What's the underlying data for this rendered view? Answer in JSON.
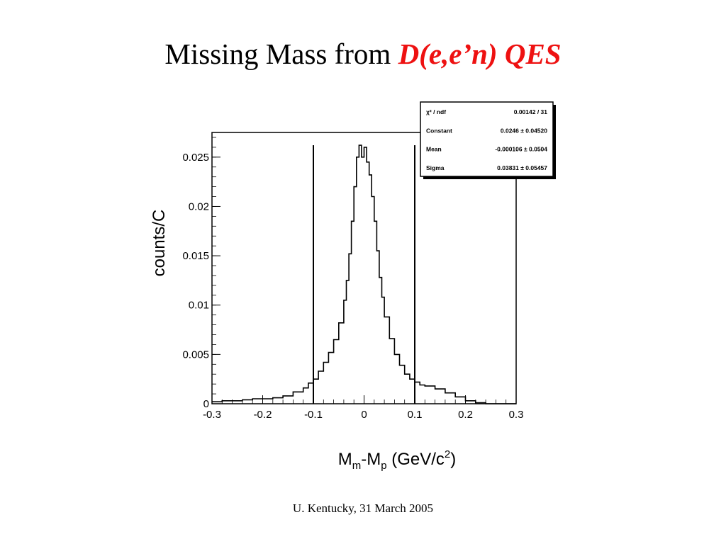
{
  "slide": {
    "title_plain": "Missing Mass from ",
    "title_accent": "D(e,e’n) QES",
    "footer": "U. Kentucky, 31 March 2005"
  },
  "colors": {
    "accent": "#ee1111",
    "histogram": "#000000"
  },
  "chart_data": {
    "type": "histogram",
    "xlabel_main": "M",
    "xlabel_sub1": "m",
    "xlabel_mid": "-M",
    "xlabel_sub2": "p",
    "xlabel_units": " (GeV/c",
    "xlabel_sup": "2",
    "xlabel_close": ")",
    "ylabel": "counts/C",
    "xlim": [
      -0.3,
      0.3
    ],
    "ylim": [
      0,
      0.0275
    ],
    "x_ticks": [
      "-0.3",
      "-0.2",
      "-0.1",
      "0",
      "0.1",
      "0.2",
      "0.3"
    ],
    "y_ticks": [
      "0",
      "0.005",
      "0.01",
      "0.015",
      "0.02",
      "0.025"
    ],
    "cut_lines": [
      -0.1,
      0.1
    ],
    "bins_x": [
      -0.3,
      -0.28,
      -0.26,
      -0.24,
      -0.22,
      -0.2,
      -0.18,
      -0.16,
      -0.14,
      -0.12,
      -0.11,
      -0.1,
      -0.09,
      -0.08,
      -0.07,
      -0.06,
      -0.05,
      -0.04,
      -0.035,
      -0.03,
      -0.025,
      -0.02,
      -0.015,
      -0.01,
      -0.005,
      0.0,
      0.005,
      0.01,
      0.015,
      0.02,
      0.025,
      0.03,
      0.035,
      0.04,
      0.05,
      0.06,
      0.07,
      0.08,
      0.09,
      0.1,
      0.11,
      0.12,
      0.14,
      0.16,
      0.18,
      0.2,
      0.22,
      0.24,
      0.3
    ],
    "bins_y": [
      0.0002,
      0.0003,
      0.0003,
      0.0004,
      0.0005,
      0.0005,
      0.0006,
      0.0008,
      0.0012,
      0.0016,
      0.0021,
      0.0025,
      0.0033,
      0.0042,
      0.0052,
      0.0065,
      0.0082,
      0.0105,
      0.0125,
      0.0152,
      0.0185,
      0.022,
      0.025,
      0.0262,
      0.025,
      0.026,
      0.0245,
      0.0232,
      0.021,
      0.0185,
      0.0155,
      0.0128,
      0.0108,
      0.0088,
      0.0066,
      0.005,
      0.0039,
      0.003,
      0.0025,
      0.0022,
      0.0019,
      0.0018,
      0.0015,
      0.0011,
      0.0007,
      0.0003,
      0.0001,
      0.0,
      0.0
    ],
    "stats_box": [
      {
        "label": "χ² / ndf",
        "value": "0.00142 / 31"
      },
      {
        "label": "Constant",
        "value": "0.0246 ± 0.04520"
      },
      {
        "label": "Mean",
        "value": "-0.000106 ± 0.0504"
      },
      {
        "label": "Sigma",
        "value": "0.03831 ± 0.05457"
      }
    ]
  }
}
